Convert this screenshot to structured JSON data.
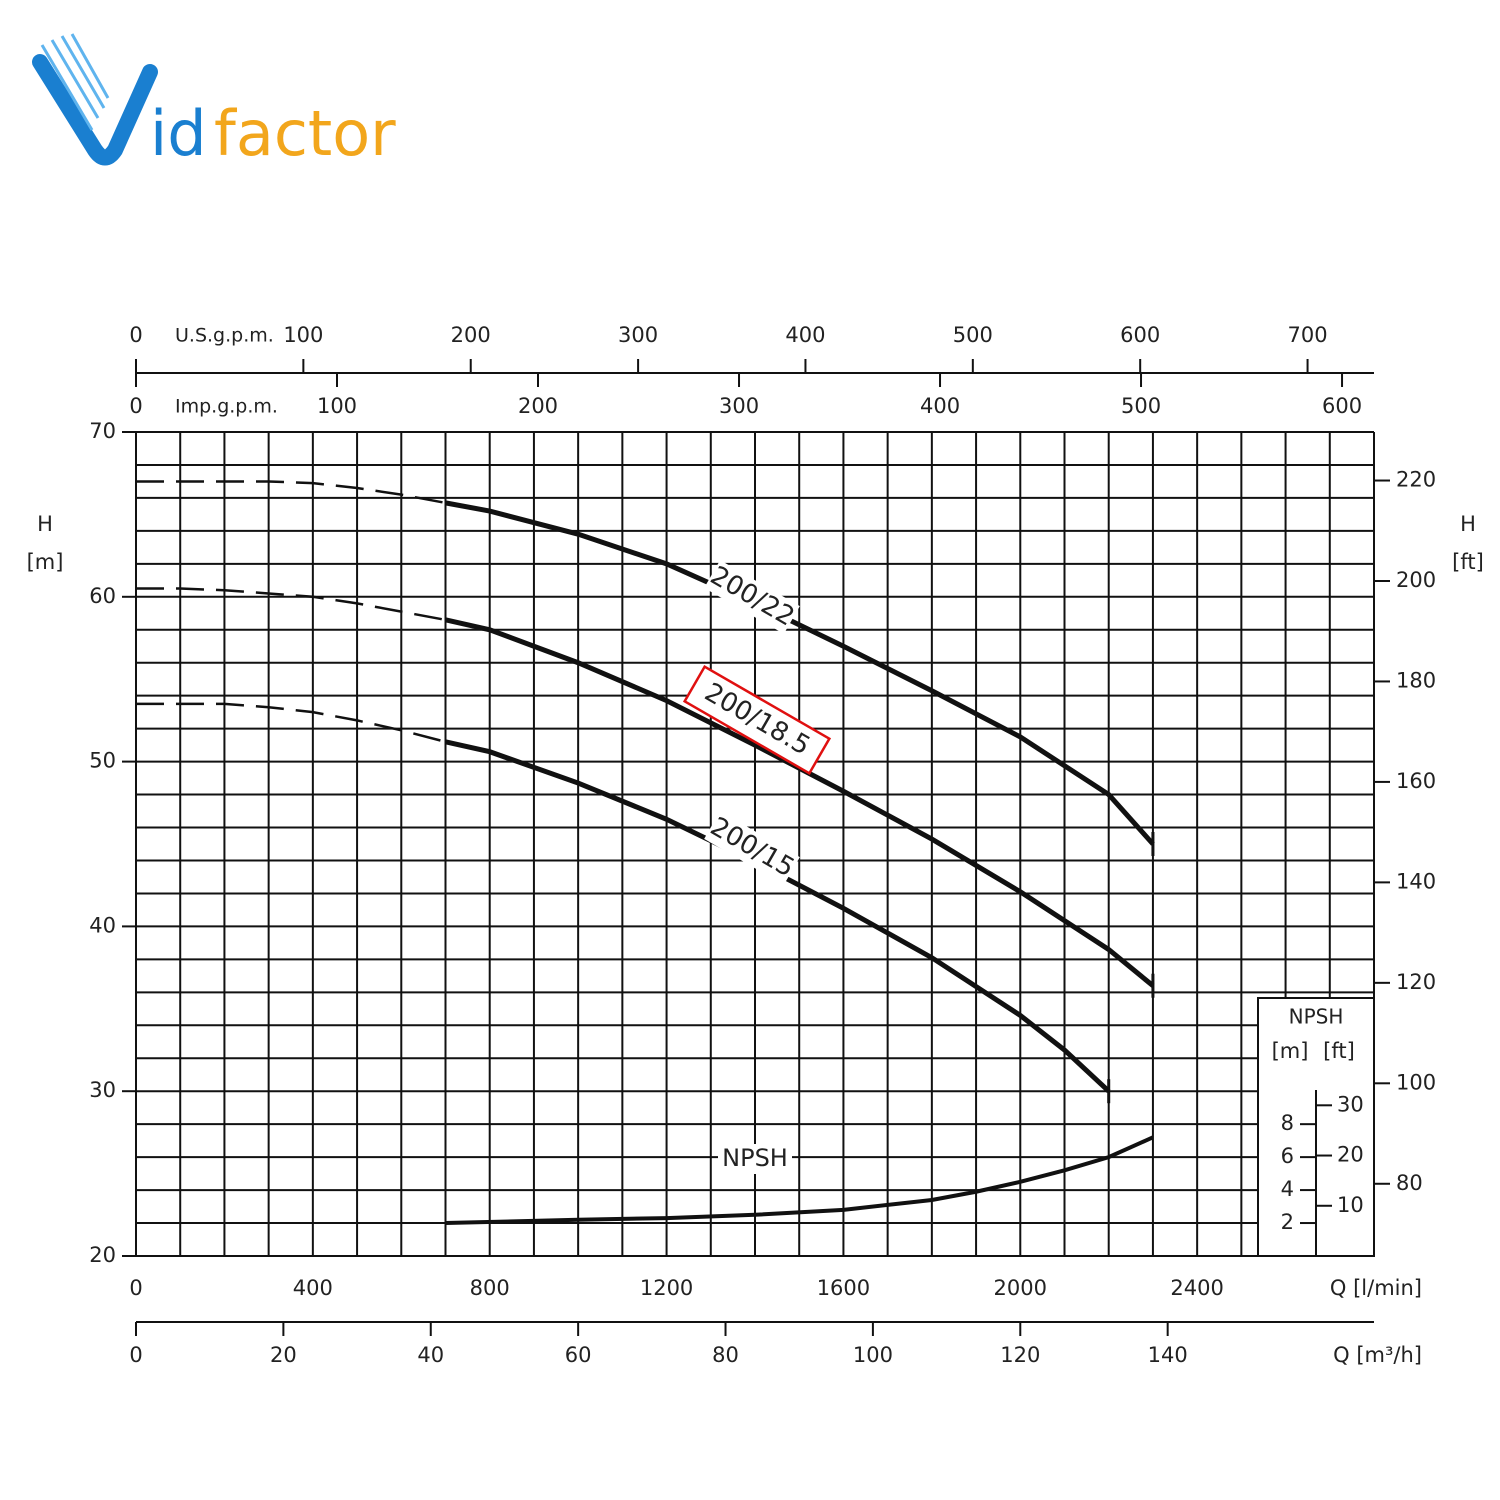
{
  "logo": {
    "accent": "id",
    "rest": "factor"
  },
  "chart_data": {
    "type": "line",
    "x_label": "Q [l/min]",
    "y_label": [
      "H",
      "[m]"
    ],
    "y2_label": [
      "H",
      "[ft]"
    ],
    "xlim": [
      0,
      2800
    ],
    "xticks": [
      0,
      400,
      800,
      1200,
      1600,
      2000,
      2400
    ],
    "ylim": [
      20,
      70
    ],
    "yticks": [
      20,
      30,
      40,
      50,
      60,
      70
    ],
    "y2lim": [
      65.62,
      229.66
    ],
    "y2ticks": [
      80,
      100,
      120,
      140,
      160,
      180,
      200,
      220
    ],
    "xgrid": [
      0,
      100,
      200,
      300,
      400,
      500,
      600,
      700,
      800,
      900,
      1000,
      1100,
      1200,
      1300,
      1400,
      1500,
      1600,
      1700,
      1800,
      1900,
      2000,
      2100,
      2200,
      2300,
      2400,
      2500,
      2600,
      2700,
      2800
    ],
    "ygrid": [
      20,
      22,
      24,
      26,
      28,
      30,
      32,
      34,
      36,
      38,
      40,
      42,
      44,
      46,
      48,
      50,
      52,
      54,
      56,
      58,
      60,
      62,
      64,
      66,
      68,
      70
    ],
    "secondary_x_axes": [
      {
        "label": "U.S.g.p.m.",
        "position": "top",
        "xlim": [
          0,
          739.7
        ],
        "xticks": [
          0,
          100,
          200,
          300,
          400,
          500,
          600,
          700
        ]
      },
      {
        "label": "Imp.g.p.m.",
        "position": "top-inner",
        "xlim": [
          0,
          615.9
        ],
        "xticks": [
          0,
          100,
          200,
          300,
          400,
          500,
          600
        ]
      },
      {
        "label": "Q [m³/h]",
        "position": "bottom",
        "xlim": [
          0,
          168
        ],
        "xticks": [
          0,
          20,
          40,
          60,
          80,
          100,
          120,
          140
        ]
      }
    ],
    "series": [
      {
        "name": "200/22",
        "color": "#111111",
        "solid_from": 700,
        "x": [
          0,
          100,
          200,
          300,
          400,
          500,
          600,
          700,
          800,
          1000,
          1200,
          1400,
          1600,
          1800,
          2000,
          2200,
          2300
        ],
        "values": [
          67,
          67,
          67,
          67,
          66.9,
          66.6,
          66.2,
          65.7,
          65.2,
          63.8,
          62.0,
          59.6,
          57.0,
          54.3,
          51.5,
          48.0,
          45.0
        ]
      },
      {
        "name": "200/18.5",
        "color": "#111111",
        "solid_from": 700,
        "label_box_color": "#e01010",
        "x": [
          0,
          100,
          200,
          300,
          400,
          500,
          600,
          700,
          800,
          1000,
          1200,
          1400,
          1600,
          1800,
          2000,
          2200,
          2300
        ],
        "values": [
          60.5,
          60.5,
          60.4,
          60.2,
          60.0,
          59.6,
          59.1,
          58.6,
          58.0,
          56.0,
          53.7,
          51.0,
          48.2,
          45.3,
          42.1,
          38.6,
          36.4
        ]
      },
      {
        "name": "200/15",
        "color": "#111111",
        "solid_from": 700,
        "x": [
          0,
          100,
          200,
          300,
          400,
          500,
          600,
          700,
          800,
          1000,
          1200,
          1400,
          1600,
          1800,
          2000,
          2100,
          2200
        ],
        "values": [
          53.5,
          53.5,
          53.5,
          53.3,
          53.0,
          52.5,
          51.9,
          51.2,
          50.6,
          48.7,
          46.5,
          43.9,
          41.1,
          38.1,
          34.6,
          32.5,
          30.0
        ]
      }
    ],
    "npsh": {
      "title": "NPSH",
      "units": [
        "[m]",
        "[ft]"
      ],
      "label": "NPSH",
      "color": "#111111",
      "ylim": [
        0,
        50
      ],
      "ft_lim": [
        0,
        164.04
      ],
      "m_ticks": [
        2,
        4,
        6,
        8
      ],
      "ft_ticks": [
        10,
        20,
        30
      ],
      "x": [
        700,
        1000,
        1200,
        1400,
        1600,
        1800,
        1900,
        2000,
        2100,
        2200,
        2300
      ],
      "values": [
        2.0,
        2.2,
        2.3,
        2.5,
        2.8,
        3.4,
        3.9,
        4.5,
        5.2,
        6.0,
        7.2
      ]
    }
  }
}
